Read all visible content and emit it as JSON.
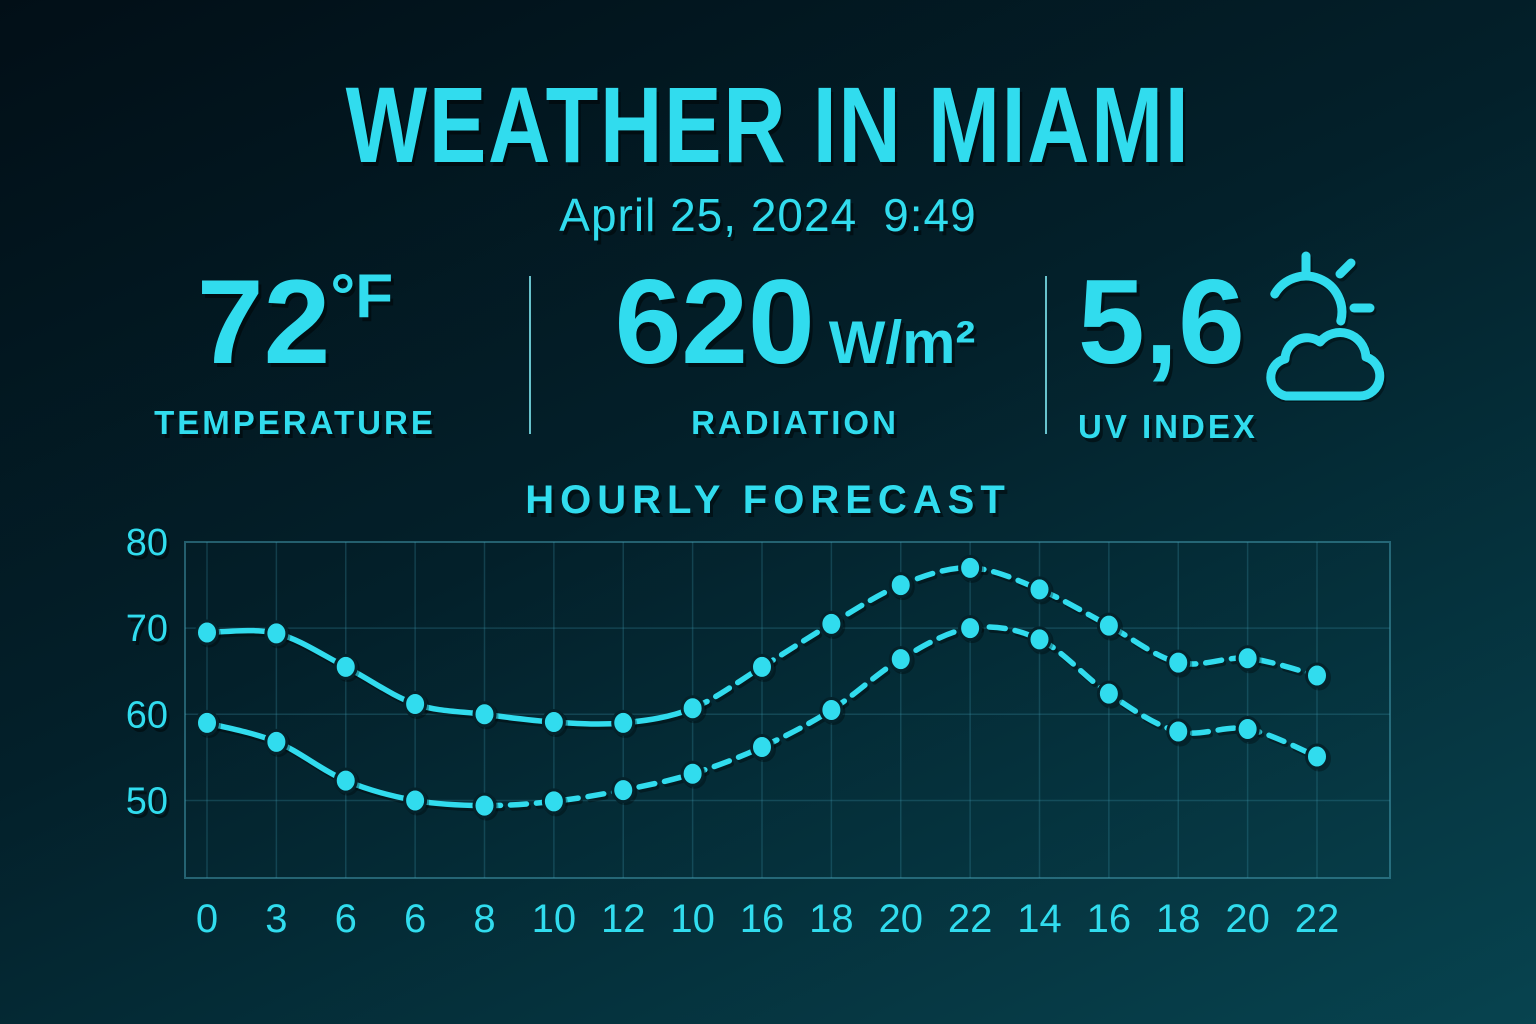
{
  "header": {
    "title": "WEATHER IN MIAMI",
    "date": "April 25, 2024",
    "time": "9:49"
  },
  "stats": [
    {
      "value": "72",
      "unit": "°F",
      "label": "TEMPERATURE"
    },
    {
      "value": "620",
      "unit": "W/m²",
      "label": "RADIATION"
    },
    {
      "value": "5,6",
      "unit": "",
      "label": "UV INDEX",
      "icon": "sun-behind-cloud-icon"
    }
  ],
  "colors": {
    "accent": "#31dcee",
    "background_top": "#020f17",
    "background_bottom": "#07434f",
    "grid": "#2d8296"
  },
  "chart_data": {
    "type": "line",
    "title": "HOURLY FORECAST",
    "categories": [
      "0",
      "3",
      "6",
      "6",
      "8",
      "10",
      "12",
      "10",
      "16",
      "18",
      "20",
      "22",
      "14",
      "16",
      "18",
      "20",
      "22"
    ],
    "series": [
      {
        "name": "upper-temperature",
        "line_style": "solid-then-dashed",
        "solid_until_index": 7,
        "values": [
          69.5,
          69.4,
          65.5,
          61.2,
          60,
          59.1,
          59,
          60.7,
          65.5,
          70.5,
          75,
          77,
          74.5,
          70.3,
          66,
          66.5,
          64.5
        ]
      },
      {
        "name": "lower-temperature",
        "line_style": "solid-then-dashed",
        "solid_until_index": 4,
        "values": [
          59,
          56.8,
          52.3,
          50,
          49.4,
          49.9,
          51.2,
          53.1,
          56.2,
          60.5,
          66.4,
          70,
          68.7,
          62.4,
          58,
          58.3,
          55.1
        ]
      }
    ],
    "yticks": [
      80,
      70,
      60,
      50
    ],
    "ylim": [
      41,
      80
    ],
    "grid": true,
    "legend": "none"
  }
}
